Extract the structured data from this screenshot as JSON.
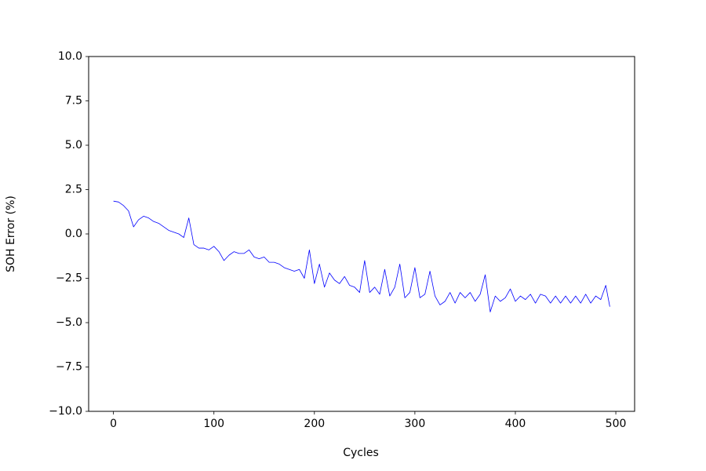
{
  "chart_data": {
    "type": "line",
    "x_label": "Cycles",
    "y_label": "SOH Error (%)",
    "x": [
      0,
      5,
      10,
      15,
      20,
      25,
      30,
      35,
      40,
      45,
      50,
      55,
      60,
      65,
      70,
      75,
      80,
      85,
      90,
      95,
      100,
      105,
      110,
      115,
      120,
      125,
      130,
      135,
      140,
      145,
      150,
      155,
      160,
      165,
      170,
      175,
      180,
      185,
      190,
      195,
      200,
      205,
      210,
      215,
      220,
      225,
      230,
      235,
      240,
      245,
      250,
      255,
      260,
      265,
      270,
      275,
      280,
      285,
      290,
      295,
      300,
      305,
      310,
      315,
      320,
      325,
      330,
      335,
      340,
      345,
      350,
      355,
      360,
      365,
      370,
      375,
      380,
      385,
      390,
      395,
      400,
      405,
      410,
      415,
      420,
      425,
      430,
      435,
      440,
      445,
      450,
      455,
      460,
      465,
      470,
      475,
      480,
      485,
      490,
      494
    ],
    "series": [
      {
        "color": "#0000ff",
        "values": [
          1.85,
          1.8,
          1.6,
          1.3,
          0.4,
          0.8,
          1.0,
          0.9,
          0.7,
          0.6,
          0.4,
          0.2,
          0.1,
          0.0,
          -0.2,
          0.9,
          -0.6,
          -0.8,
          -0.8,
          -0.9,
          -0.7,
          -1.0,
          -1.5,
          -1.2,
          -1.0,
          -1.1,
          -1.1,
          -0.9,
          -1.3,
          -1.4,
          -1.3,
          -1.6,
          -1.6,
          -1.7,
          -1.9,
          -2.0,
          -2.1,
          -2.0,
          -2.5,
          -0.9,
          -2.8,
          -1.7,
          -3.0,
          -2.2,
          -2.6,
          -2.8,
          -2.4,
          -2.9,
          -3.0,
          -3.3,
          -1.5,
          -3.3,
          -3.0,
          -3.4,
          -2.0,
          -3.5,
          -3.0,
          -1.7,
          -3.6,
          -3.3,
          -1.9,
          -3.6,
          -3.4,
          -2.1,
          -3.5,
          -4.0,
          -3.8,
          -3.3,
          -3.9,
          -3.3,
          -3.6,
          -3.3,
          -3.8,
          -3.4,
          -2.3,
          -4.4,
          -3.5,
          -3.8,
          -3.6,
          -3.1,
          -3.8,
          -3.5,
          -3.7,
          -3.4,
          -3.9,
          -3.4,
          -3.5,
          -3.9,
          -3.5,
          -3.9,
          -3.5,
          -3.9,
          -3.5,
          -3.9,
          -3.4,
          -3.9,
          -3.5,
          -3.7,
          -2.9,
          -4.1
        ]
      }
    ],
    "xlim": [
      -24.7,
      518.7
    ],
    "xticks": [
      0,
      100,
      200,
      300,
      400,
      500
    ],
    "ylim": [
      -10,
      10
    ],
    "yticks": [
      {
        "value": -10,
        "label": "−10.0"
      },
      {
        "value": -7.5,
        "label": "−7.5"
      },
      {
        "value": -5,
        "label": "−5.0"
      },
      {
        "value": -2.5,
        "label": "−2.5"
      },
      {
        "value": 0,
        "label": "0.0"
      },
      {
        "value": 2.5,
        "label": "2.5"
      },
      {
        "value": 5,
        "label": "5.0"
      },
      {
        "value": 7.5,
        "label": "7.5"
      },
      {
        "value": 10,
        "label": "10.0"
      }
    ],
    "grid": false
  }
}
